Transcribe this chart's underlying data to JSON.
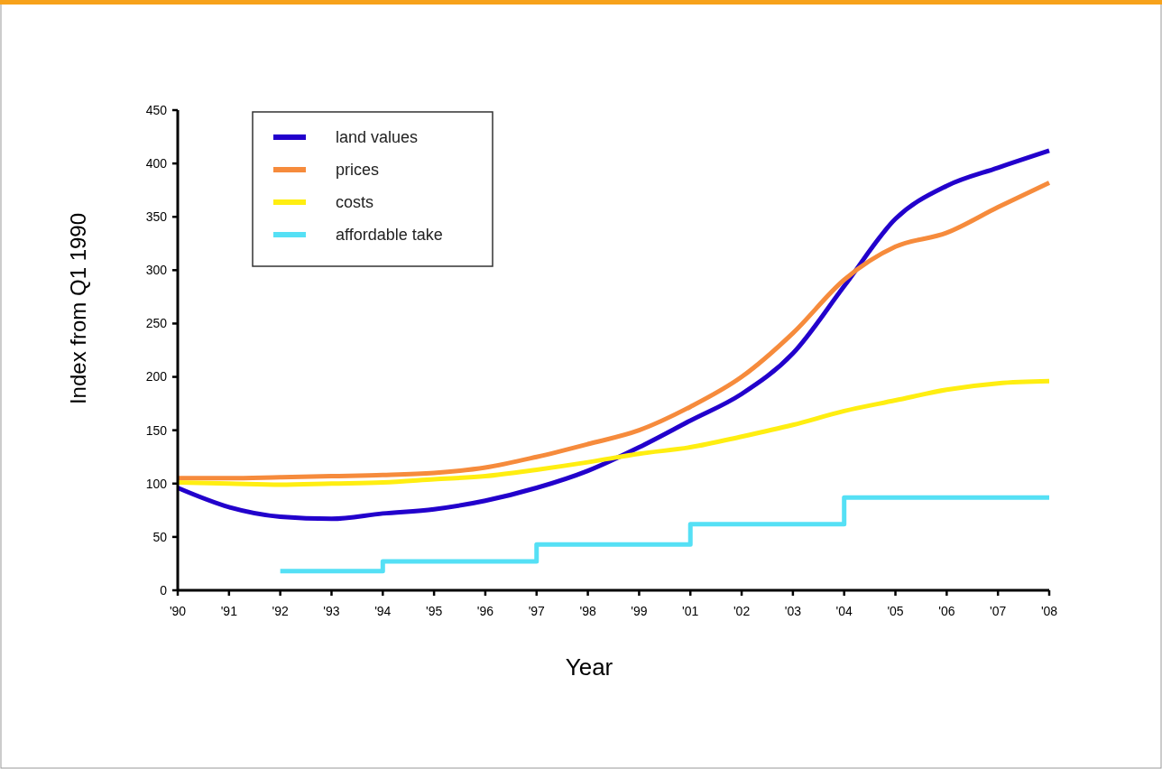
{
  "chart_data": {
    "type": "line",
    "xlabel": "Year",
    "ylabel": "Index from Q1 1990",
    "categories": [
      "'90",
      "'91",
      "'92",
      "'93",
      "'94",
      "'95",
      "'96",
      "'97",
      "'98",
      "'99",
      "'01",
      "'02",
      "'03",
      "'04",
      "'05",
      "'06",
      "'07",
      "'08"
    ],
    "ylim": [
      0,
      450
    ],
    "yticks": [
      0,
      50,
      100,
      150,
      200,
      250,
      300,
      350,
      400,
      450
    ],
    "legend": "top left",
    "series": [
      {
        "name": "land values",
        "color": "#2200cc",
        "values": [
          96,
          78,
          69,
          67,
          72,
          76,
          84,
          96,
          112,
          134,
          159,
          184,
          222,
          285,
          348,
          379,
          396,
          412
        ]
      },
      {
        "name": "prices",
        "color": "#f68b3c",
        "values": [
          105,
          105,
          106,
          107,
          108,
          110,
          115,
          125,
          137,
          150,
          172,
          200,
          241,
          291,
          322,
          335,
          359,
          382
        ]
      },
      {
        "name": "costs",
        "color": "#ffee11",
        "values": [
          101,
          100,
          99,
          100,
          101,
          104,
          107,
          113,
          120,
          128,
          134,
          144,
          155,
          168,
          178,
          188,
          194,
          196
        ]
      },
      {
        "name": "affordable take",
        "type": "step",
        "color": "#55e0f5",
        "values": [
          null,
          null,
          18,
          18,
          27,
          27,
          27,
          43,
          43,
          43,
          62,
          62,
          62,
          87,
          87,
          87,
          87,
          87
        ]
      }
    ]
  }
}
